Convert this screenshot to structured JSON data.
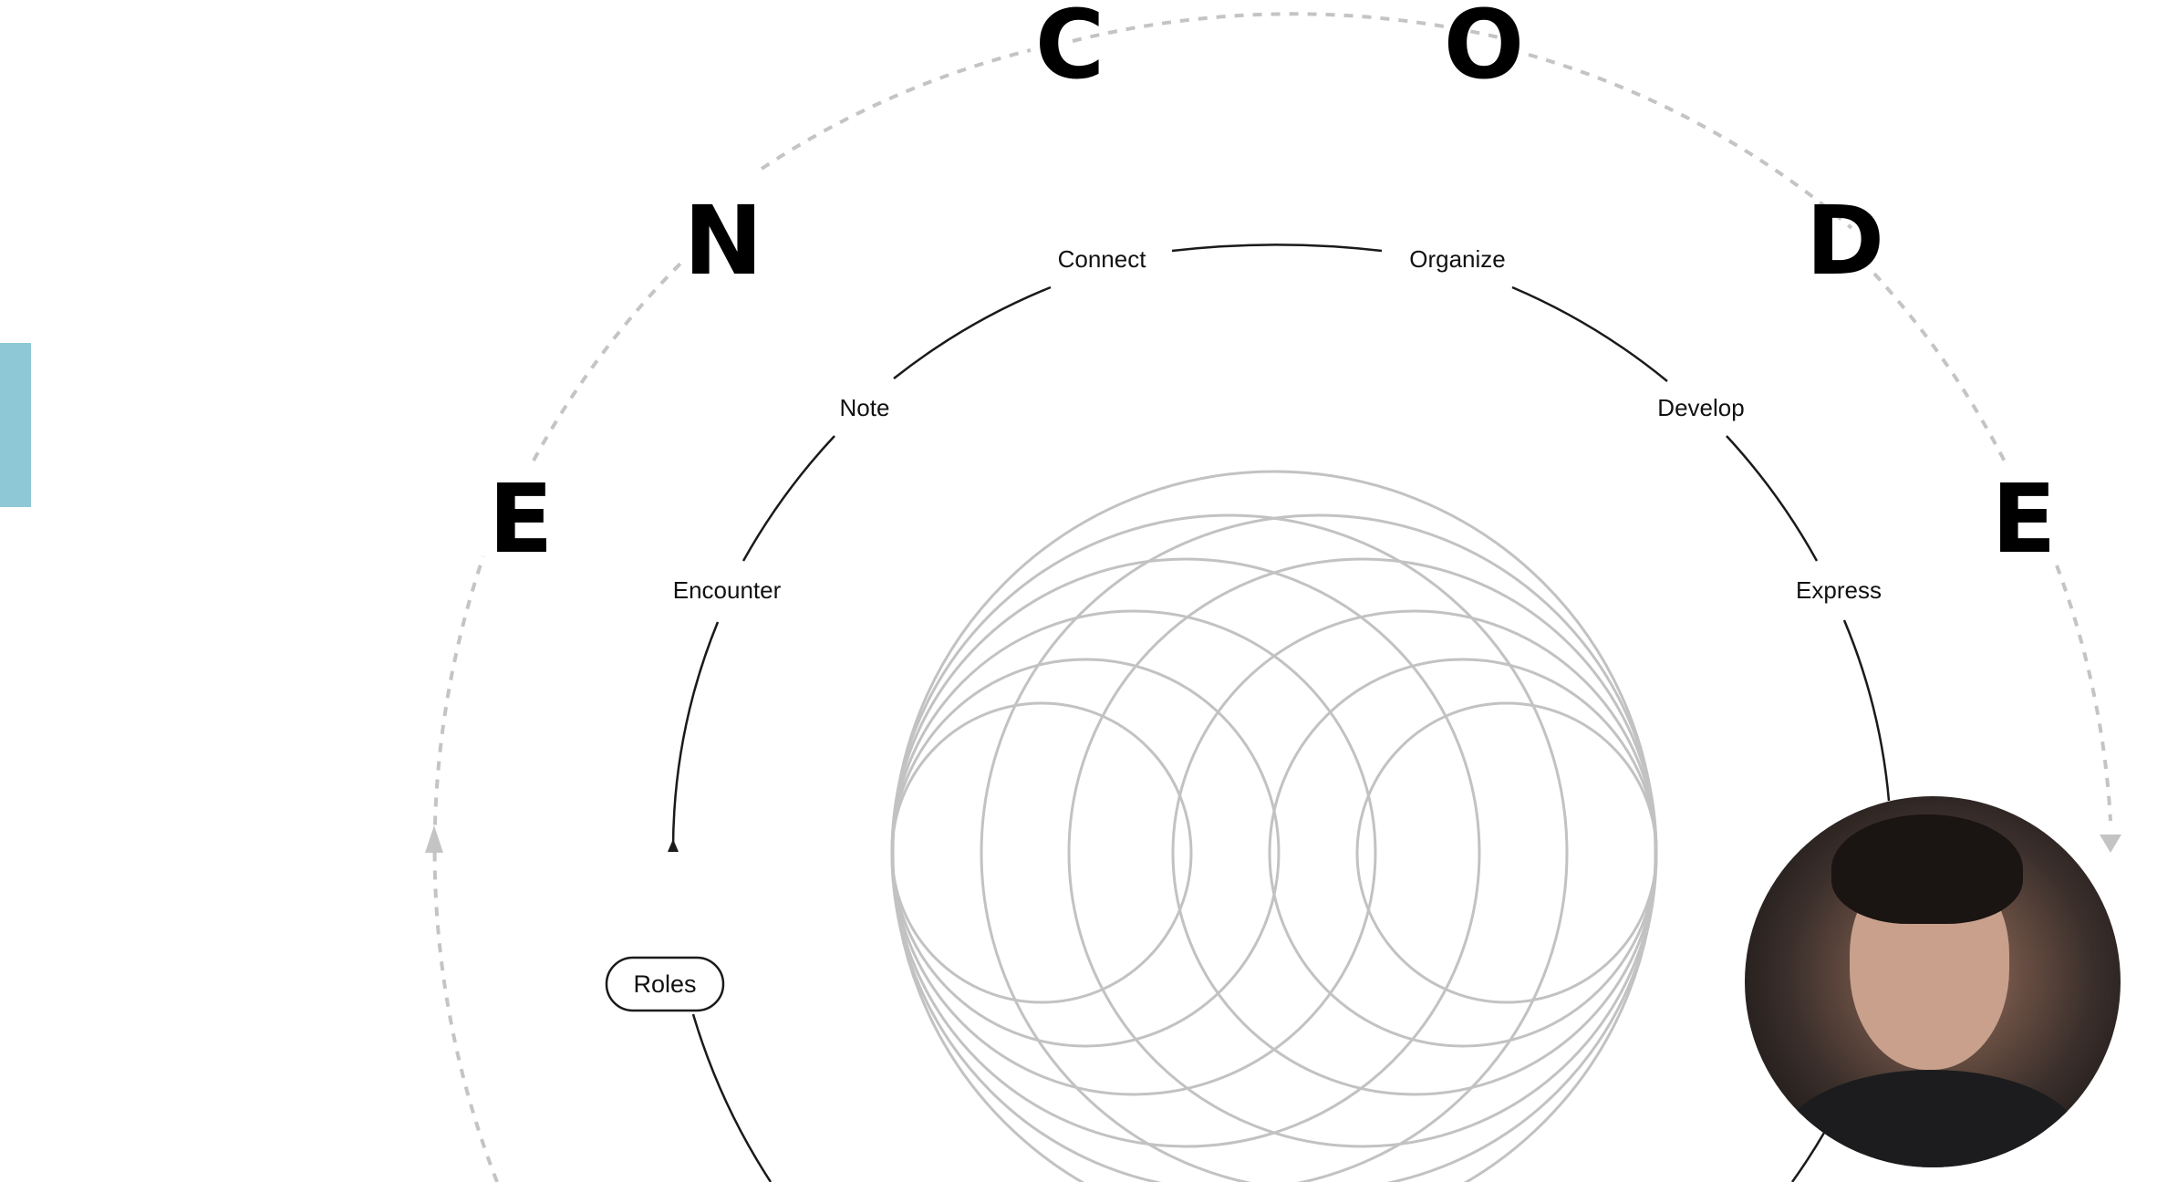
{
  "encode_letters": [
    "E",
    "N",
    "C",
    "O",
    "D",
    "E"
  ],
  "stages": [
    "Encounter",
    "Note",
    "Connect",
    "Organize",
    "Develop",
    "Express"
  ],
  "roles_label": "Roles",
  "colors": {
    "outer_ring": "#c4c4c4",
    "inner_ring": "#1a1a1a",
    "circles": "#c2c2c2",
    "side_tab": "#8ec8d6"
  },
  "icons": {
    "outer_arrows": "triangle-arrow-icon",
    "inner_arrow": "triangle-arrow-icon"
  }
}
